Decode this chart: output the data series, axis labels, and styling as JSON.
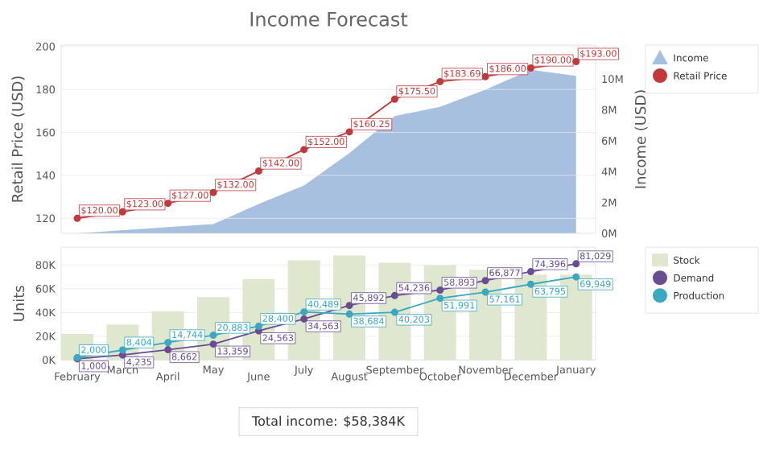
{
  "chart_data": [
    {
      "type": "line",
      "title": "Income Forecast",
      "ylabel": "Retail Price (USD)",
      "y2label": "Income (USD)",
      "categories": [
        null,
        null,
        null,
        null,
        null,
        null,
        null,
        null,
        null,
        null,
        null,
        null
      ],
      "ylim": [
        113,
        200.7
      ],
      "yticks": [
        120,
        140,
        160,
        180,
        200
      ],
      "y2lim": [
        0,
        12200000
      ],
      "y2ticks": [
        {
          "value": 0,
          "label": "0M"
        },
        {
          "value": 2000000,
          "label": "2M"
        },
        {
          "value": 4000000,
          "label": "4M"
        },
        {
          "value": 6000000,
          "label": "6M"
        },
        {
          "value": 8000000,
          "label": "8M"
        },
        {
          "value": 10000000,
          "label": "10M"
        }
      ],
      "series": [
        {
          "name": "Income",
          "type": "area",
          "axis": "y2",
          "color": "#a7c0e0",
          "values": [
            0,
            200000,
            400000,
            600000,
            1900000,
            3100000,
            5200000,
            7600000,
            8200000,
            9300000,
            10600000,
            10200000
          ]
        },
        {
          "name": "Retail Price",
          "color": "#c0393b",
          "marker": "circle",
          "values": [
            120,
            123,
            127,
            132,
            142,
            152,
            160.25,
            175.5,
            183.69,
            186,
            190,
            193
          ],
          "value_labels": [
            "$120.00",
            "$123.00",
            "$127.00",
            "$132.00",
            "$142.00",
            "$152.00",
            "$160.25",
            "$175.50",
            "$183.69",
            "$186.00",
            "$190.00",
            "$193.00"
          ]
        }
      ],
      "grid": "y",
      "legend": "right",
      "tick_labels": "y"
    },
    {
      "type": "bar",
      "ylabel": "Units",
      "categories": [
        "February",
        "March",
        "April",
        "May",
        "June",
        "July",
        "August",
        "September",
        "October",
        "November",
        "December",
        "January"
      ],
      "ylim": [
        0,
        95000
      ],
      "yticks": [
        {
          "value": 0,
          "label": "0K"
        },
        {
          "value": 20000,
          "label": "20K"
        },
        {
          "value": 40000,
          "label": "40K"
        },
        {
          "value": 60000,
          "label": "60K"
        },
        {
          "value": 80000,
          "label": "80K"
        }
      ],
      "series": [
        {
          "name": "Stock",
          "color": "#dfe8cf",
          "values": [
            22000,
            30000,
            41000,
            53000,
            68000,
            84000,
            88000,
            82000,
            80000,
            76000,
            72000,
            72000
          ]
        },
        {
          "name": "Demand",
          "type": "line",
          "color": "#6a4c93",
          "marker": "circle",
          "values": [
            1000,
            4235,
            8662,
            13359,
            24563,
            34563,
            45892,
            54236,
            58893,
            66877,
            74396,
            81029
          ],
          "value_labels": [
            "1,000",
            "4,235",
            "8,662",
            "13,359",
            "24,563",
            "34,563",
            "45,892",
            "54,236",
            "58,893",
            "66,877",
            "74,396",
            "81,029"
          ]
        },
        {
          "name": "Production",
          "type": "line",
          "color": "#3aa8c1",
          "marker": "circle",
          "values": [
            2000,
            8404,
            14744,
            20883,
            28400,
            40489,
            38684,
            40203,
            51991,
            57161,
            63795,
            69949
          ],
          "value_labels": [
            "2,000",
            "8,404",
            "14,744",
            "20,883",
            "28,400",
            "40,489",
            "38,684",
            "40,203",
            "51,991",
            "57,161",
            "63,795",
            "69,949"
          ]
        }
      ],
      "grid": "y",
      "legend": "right",
      "annotations": [
        "Total income: $58,384K"
      ]
    }
  ]
}
